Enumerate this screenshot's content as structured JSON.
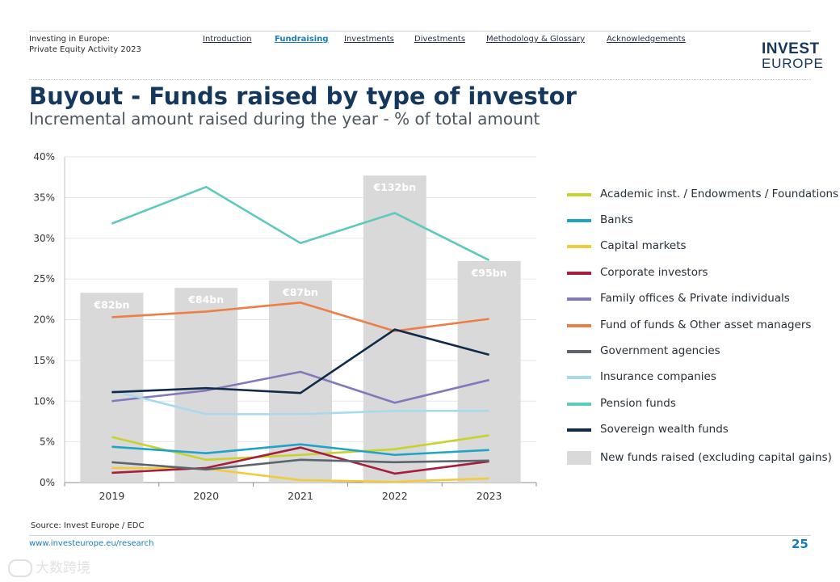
{
  "header": {
    "report_title_line1": "Investing in Europe:",
    "report_title_line2": "Private Equity Activity 2023",
    "nav": [
      {
        "label": "Introduction",
        "active": false
      },
      {
        "label": "Fundraising",
        "active": true
      },
      {
        "label": "Investments",
        "active": false
      },
      {
        "label": "Divestments",
        "active": false
      },
      {
        "label": "Methodology & Glossary",
        "active": false
      },
      {
        "label": "Acknowledgements",
        "active": false
      }
    ],
    "logo_line1": "INVEST",
    "logo_line2": "EUROPE"
  },
  "page": {
    "title": "Buyout - Funds raised by type of investor",
    "subtitle": "Incremental amount raised during the year - % of total amount"
  },
  "chart_data": {
    "type": "line",
    "title": "Buyout - Funds raised by type of investor",
    "subtitle": "Incremental amount raised during the year - % of total amount",
    "categories": [
      "2019",
      "2020",
      "2021",
      "2022",
      "2023"
    ],
    "ylim": [
      0,
      40
    ],
    "y_ticks": [
      "0%",
      "5%",
      "10%",
      "15%",
      "20%",
      "25%",
      "30%",
      "35%",
      "40%"
    ],
    "y_tick_values": [
      0,
      5,
      10,
      15,
      20,
      25,
      30,
      35,
      40
    ],
    "xlabel": "",
    "ylabel": "",
    "legend_position": "right",
    "bars": {
      "name": "New funds raised (excluding capital gains)",
      "color": "#d9d9d9",
      "values_pct_scale": [
        23.3,
        23.9,
        24.8,
        37.7,
        27.2
      ],
      "labels": [
        "€82bn",
        "€84bn",
        "€87bn",
        "€132bn",
        "€95bn"
      ]
    },
    "series": [
      {
        "name": "Academic inst. / Endowments / Foundations",
        "color": "#c8d22f",
        "values": [
          5.6,
          2.8,
          3.4,
          4.1,
          5.8
        ]
      },
      {
        "name": "Banks",
        "color": "#1fa3c9",
        "values": [
          4.4,
          3.6,
          4.7,
          3.4,
          4.0
        ]
      },
      {
        "name": "Capital markets",
        "color": "#f2cb3c",
        "values": [
          1.8,
          1.7,
          0.3,
          0.1,
          0.5
        ]
      },
      {
        "name": "Corporate investors",
        "color": "#a51e3e",
        "values": [
          1.2,
          1.8,
          4.3,
          1.1,
          2.6
        ]
      },
      {
        "name": "Family offices & Private individuals",
        "color": "#8279bd",
        "values": [
          10.0,
          11.3,
          13.6,
          9.8,
          12.6
        ]
      },
      {
        "name": "Fund of funds & Other asset managers",
        "color": "#ec7f47",
        "values": [
          20.3,
          21.0,
          22.1,
          18.6,
          20.1
        ]
      },
      {
        "name": "Government agencies",
        "color": "#5c646d",
        "values": [
          2.5,
          1.6,
          2.8,
          2.5,
          2.7
        ]
      },
      {
        "name": "Insurance companies",
        "color": "#a6daec",
        "values": [
          11.3,
          8.4,
          8.4,
          8.8,
          8.8
        ]
      },
      {
        "name": "Pension funds",
        "color": "#5fc9bd",
        "values": [
          31.8,
          36.3,
          29.4,
          33.1,
          27.3
        ]
      },
      {
        "name": "Sovereign wealth funds",
        "color": "#102b49",
        "values": [
          11.1,
          11.6,
          11.0,
          18.8,
          15.7
        ]
      }
    ]
  },
  "footer": {
    "source": "Source: Invest Europe / EDC",
    "url": "www.investeurope.eu/research",
    "page_number": "25"
  },
  "watermark": "大数跨境"
}
